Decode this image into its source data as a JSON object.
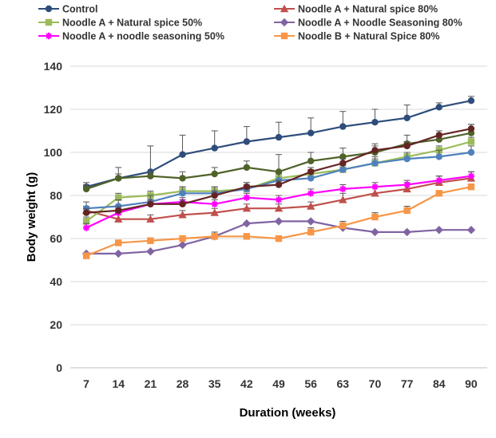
{
  "chart_data": {
    "type": "line",
    "title": "",
    "xlabel": "Duration (weeks)",
    "ylabel": "Body weight (g)",
    "categories": [
      "7",
      "14",
      "21",
      "28",
      "35",
      "42",
      "49",
      "56",
      "63",
      "70",
      "77",
      "84",
      "90"
    ],
    "ylim": [
      0,
      140
    ],
    "yticks": [
      0,
      20,
      40,
      60,
      80,
      100,
      120,
      140
    ],
    "grid": true,
    "legend_position": "top",
    "series": [
      {
        "name": "Control",
        "color": "#2E4D7B",
        "marker": "circle",
        "values": [
          84,
          88,
          91,
          99,
          102,
          105,
          107,
          109,
          112,
          114,
          116,
          121,
          124
        ],
        "errors": [
          2,
          5,
          12,
          9,
          8,
          7,
          7,
          7,
          7,
          6,
          6,
          2,
          2
        ]
      },
      {
        "name": "Noodle A + Natural spice  80%",
        "color": "#C0504D",
        "marker": "triangle",
        "values": [
          73,
          69,
          69,
          71,
          72,
          74,
          74,
          75,
          78,
          81,
          83,
          86,
          88
        ],
        "errors": [
          2,
          2,
          2,
          2,
          2,
          2,
          2,
          2,
          3,
          3,
          3,
          3,
          3
        ]
      },
      {
        "name": "Noodle A + Natural spice 50%",
        "color": "#9BBB59",
        "marker": "square",
        "values": [
          68,
          79,
          80,
          82,
          82,
          83,
          88,
          90,
          92,
          95,
          98,
          101,
          105
        ],
        "errors": [
          2,
          2,
          2,
          2,
          2,
          2,
          2,
          2,
          2,
          2,
          2,
          2,
          2
        ]
      },
      {
        "name": "Noodle A + Noodle Seasoning 80%",
        "color": "#8064A2",
        "marker": "diamond",
        "values": [
          53,
          53,
          54,
          57,
          61,
          67,
          68,
          68,
          65,
          63,
          63,
          64,
          64
        ],
        "errors": [
          0,
          0,
          0,
          0,
          0,
          0,
          0,
          0,
          0,
          0,
          0,
          0,
          0
        ]
      },
      {
        "name": "Noodle A + noodle seasoning 50%",
        "color": "#FF00FF",
        "marker": "star",
        "values": [
          65,
          72,
          76,
          77,
          76,
          79,
          78,
          81,
          83,
          84,
          85,
          87,
          89
        ],
        "errors": [
          2,
          2,
          2,
          2,
          2,
          2,
          2,
          2,
          2,
          2,
          2,
          2,
          2
        ]
      },
      {
        "name": "Noodle B + Natural Spice 80%",
        "color": "#F79646",
        "marker": "square",
        "values": [
          52,
          58,
          59,
          60,
          61,
          61,
          60,
          63,
          66,
          70,
          73,
          81,
          84
        ],
        "errors": [
          1,
          1,
          1,
          1,
          2,
          1,
          1,
          2,
          2,
          2,
          2,
          1,
          1
        ]
      },
      {
        "name": "",
        "color": "#4F81BD",
        "marker": "circle",
        "values": [
          74,
          75,
          77,
          81,
          81,
          83,
          87,
          88,
          92,
          95,
          97,
          98,
          100
        ],
        "errors": [
          3,
          3,
          3,
          3,
          3,
          3,
          3,
          3,
          3,
          3,
          3,
          3,
          3
        ]
      },
      {
        "name": "",
        "color": "#4F6228",
        "marker": "circle",
        "values": [
          83,
          88,
          89,
          88,
          90,
          93,
          91,
          96,
          98,
          100,
          104,
          106,
          109
        ],
        "errors": [
          2,
          2,
          2,
          3,
          3,
          3,
          8,
          4,
          4,
          4,
          4,
          4,
          4
        ]
      },
      {
        "name": "",
        "color": "#632523",
        "marker": "circle",
        "values": [
          72,
          73,
          76,
          76,
          80,
          84,
          85,
          91,
          95,
          101,
          103,
          108,
          111
        ],
        "errors": [
          2,
          2,
          2,
          2,
          2,
          2,
          2,
          2,
          2,
          2,
          2,
          2,
          2
        ]
      }
    ]
  }
}
